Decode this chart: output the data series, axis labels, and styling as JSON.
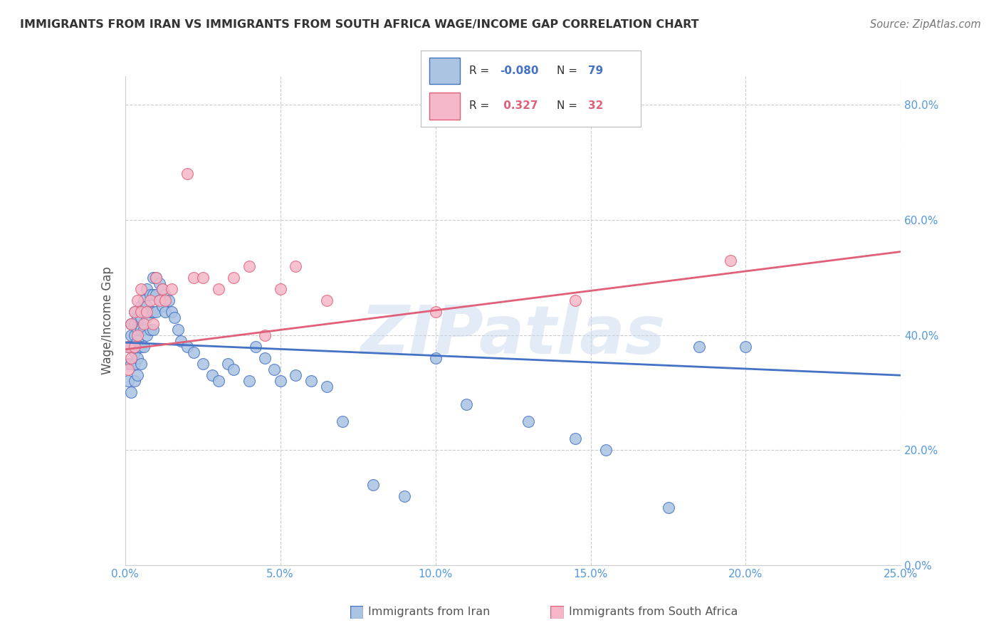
{
  "title": "IMMIGRANTS FROM IRAN VS IMMIGRANTS FROM SOUTH AFRICA WAGE/INCOME GAP CORRELATION CHART",
  "source": "Source: ZipAtlas.com",
  "ylabel": "Wage/Income Gap",
  "xlabel_iran": "Immigrants from Iran",
  "xlabel_sa": "Immigrants from South Africa",
  "r_iran": "-0.080",
  "n_iran": "79",
  "r_sa": "0.327",
  "n_sa": "32",
  "xmin": 0.0,
  "xmax": 0.25,
  "ymin": 0.0,
  "ymax": 0.85,
  "yticks": [
    0.0,
    0.2,
    0.4,
    0.6,
    0.8
  ],
  "xticks": [
    0.0,
    0.05,
    0.1,
    0.15,
    0.2,
    0.25
  ],
  "color_iran": "#aac4e2",
  "color_sa": "#f5b8c8",
  "line_color_iran": "#4472c4",
  "line_color_sa": "#e0607a",
  "background_color": "#ffffff",
  "watermark": "ZIPatlas",
  "iran_x": [
    0.001,
    0.001,
    0.001,
    0.002,
    0.002,
    0.002,
    0.002,
    0.002,
    0.003,
    0.003,
    0.003,
    0.003,
    0.003,
    0.003,
    0.004,
    0.004,
    0.004,
    0.004,
    0.004,
    0.005,
    0.005,
    0.005,
    0.005,
    0.005,
    0.006,
    0.006,
    0.006,
    0.006,
    0.007,
    0.007,
    0.007,
    0.007,
    0.008,
    0.008,
    0.008,
    0.009,
    0.009,
    0.009,
    0.009,
    0.01,
    0.01,
    0.01,
    0.011,
    0.011,
    0.012,
    0.012,
    0.013,
    0.013,
    0.014,
    0.015,
    0.016,
    0.017,
    0.018,
    0.02,
    0.022,
    0.025,
    0.028,
    0.03,
    0.033,
    0.035,
    0.04,
    0.042,
    0.045,
    0.048,
    0.05,
    0.055,
    0.06,
    0.065,
    0.07,
    0.08,
    0.09,
    0.1,
    0.11,
    0.13,
    0.145,
    0.155,
    0.175,
    0.185,
    0.2
  ],
  "iran_y": [
    0.38,
    0.35,
    0.32,
    0.42,
    0.4,
    0.38,
    0.35,
    0.3,
    0.44,
    0.42,
    0.4,
    0.37,
    0.35,
    0.32,
    0.43,
    0.41,
    0.39,
    0.36,
    0.33,
    0.45,
    0.43,
    0.41,
    0.38,
    0.35,
    0.46,
    0.44,
    0.41,
    0.38,
    0.48,
    0.45,
    0.43,
    0.4,
    0.47,
    0.44,
    0.41,
    0.5,
    0.47,
    0.44,
    0.41,
    0.5,
    0.47,
    0.44,
    0.49,
    0.46,
    0.48,
    0.45,
    0.47,
    0.44,
    0.46,
    0.44,
    0.43,
    0.41,
    0.39,
    0.38,
    0.37,
    0.35,
    0.33,
    0.32,
    0.35,
    0.34,
    0.32,
    0.38,
    0.36,
    0.34,
    0.32,
    0.33,
    0.32,
    0.31,
    0.25,
    0.14,
    0.12,
    0.36,
    0.28,
    0.25,
    0.22,
    0.2,
    0.1,
    0.38,
    0.38
  ],
  "sa_x": [
    0.001,
    0.001,
    0.002,
    0.002,
    0.003,
    0.003,
    0.004,
    0.004,
    0.005,
    0.005,
    0.006,
    0.007,
    0.008,
    0.009,
    0.01,
    0.011,
    0.012,
    0.013,
    0.015,
    0.02,
    0.022,
    0.025,
    0.03,
    0.035,
    0.04,
    0.045,
    0.05,
    0.055,
    0.065,
    0.1,
    0.145,
    0.195
  ],
  "sa_y": [
    0.38,
    0.34,
    0.42,
    0.36,
    0.44,
    0.38,
    0.46,
    0.4,
    0.48,
    0.44,
    0.42,
    0.44,
    0.46,
    0.42,
    0.5,
    0.46,
    0.48,
    0.46,
    0.48,
    0.68,
    0.5,
    0.5,
    0.48,
    0.5,
    0.52,
    0.4,
    0.48,
    0.52,
    0.46,
    0.44,
    0.46,
    0.53
  ]
}
